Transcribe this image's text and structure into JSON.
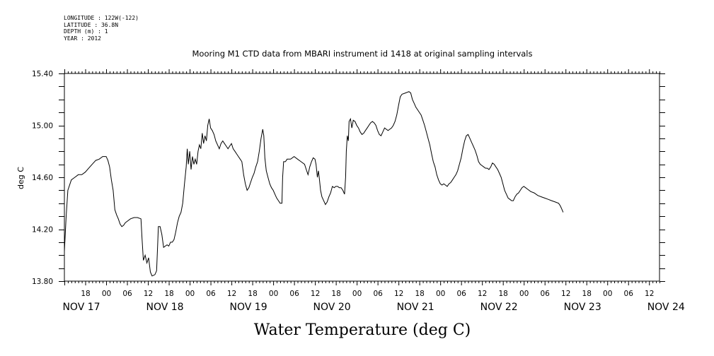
{
  "header": {
    "lines": [
      "LONGITUDE : 122W(-122)",
      "LATITUDE : 36.8N",
      "DEPTH (m) : 1",
      "YEAR : 2012"
    ]
  },
  "chart_data": {
    "type": "line",
    "title": "Mooring M1 CTD data from MBARI instrument id 1418 at original sampling intervals",
    "xlabel": "Water Temperature (deg C)",
    "ylabel": "deg C",
    "xlim_hours": [
      0,
      171
    ],
    "ylim": [
      13.8,
      15.4
    ],
    "yticks": [
      "13.80",
      "14.20",
      "14.60",
      "15.00",
      "15.40"
    ],
    "ytick_values": [
      13.8,
      14.2,
      14.6,
      15.0,
      15.4
    ],
    "hour_ticks": [
      {
        "h": 6,
        "label": "18"
      },
      {
        "h": 12,
        "label": "00"
      },
      {
        "h": 18,
        "label": "06"
      },
      {
        "h": 24,
        "label": "12"
      },
      {
        "h": 30,
        "label": "18"
      },
      {
        "h": 36,
        "label": "00"
      },
      {
        "h": 42,
        "label": "06"
      },
      {
        "h": 48,
        "label": "12"
      },
      {
        "h": 54,
        "label": "18"
      },
      {
        "h": 60,
        "label": "00"
      },
      {
        "h": 66,
        "label": "06"
      },
      {
        "h": 72,
        "label": "12"
      },
      {
        "h": 78,
        "label": "18"
      },
      {
        "h": 84,
        "label": "00"
      },
      {
        "h": 90,
        "label": "06"
      },
      {
        "h": 96,
        "label": "12"
      },
      {
        "h": 102,
        "label": "18"
      },
      {
        "h": 108,
        "label": "00"
      },
      {
        "h": 114,
        "label": "06"
      },
      {
        "h": 120,
        "label": "12"
      },
      {
        "h": 126,
        "label": "18"
      },
      {
        "h": 132,
        "label": "00"
      },
      {
        "h": 138,
        "label": "06"
      },
      {
        "h": 144,
        "label": "12"
      },
      {
        "h": 150,
        "label": "18"
      },
      {
        "h": 156,
        "label": "00"
      },
      {
        "h": 162,
        "label": "06"
      },
      {
        "h": 168,
        "label": "12"
      }
    ],
    "day_labels": [
      {
        "h": 0,
        "label": "NOV 17"
      },
      {
        "h": 24,
        "label": "NOV 18"
      },
      {
        "h": 48,
        "label": "NOV 19"
      },
      {
        "h": 72,
        "label": "NOV 20"
      },
      {
        "h": 96,
        "label": "NOV 21"
      },
      {
        "h": 120,
        "label": "NOV 22"
      },
      {
        "h": 144,
        "label": "NOV 23"
      },
      {
        "h": 168,
        "label": "NOV 24"
      }
    ],
    "series": [
      {
        "values": [
          [
            0.0,
            14.03
          ],
          [
            0.5,
            14.3
          ],
          [
            1.0,
            14.5
          ],
          [
            2.0,
            14.58
          ],
          [
            3.0,
            14.6
          ],
          [
            4.0,
            14.62
          ],
          [
            5.0,
            14.62
          ],
          [
            6.0,
            14.64
          ],
          [
            7.0,
            14.67
          ],
          [
            8.0,
            14.7
          ],
          [
            9.0,
            14.73
          ],
          [
            10.0,
            14.74
          ],
          [
            11.0,
            14.76
          ],
          [
            12.0,
            14.76
          ],
          [
            12.5,
            14.73
          ],
          [
            13.0,
            14.68
          ],
          [
            13.5,
            14.58
          ],
          [
            14.0,
            14.5
          ],
          [
            14.5,
            14.35
          ],
          [
            15.0,
            14.31
          ],
          [
            15.5,
            14.28
          ],
          [
            16.0,
            14.24
          ],
          [
            16.5,
            14.22
          ],
          [
            17.0,
            14.23
          ],
          [
            17.5,
            14.25
          ],
          [
            18.0,
            14.26
          ],
          [
            19.0,
            14.28
          ],
          [
            20.0,
            14.29
          ],
          [
            21.0,
            14.29
          ],
          [
            22.0,
            14.28
          ],
          [
            22.3,
            14.13
          ],
          [
            22.7,
            13.96
          ],
          [
            23.2,
            14.0
          ],
          [
            23.7,
            13.94
          ],
          [
            24.2,
            13.98
          ],
          [
            24.7,
            13.87
          ],
          [
            25.2,
            13.84
          ],
          [
            26.0,
            13.85
          ],
          [
            26.5,
            13.88
          ],
          [
            26.8,
            14.08
          ],
          [
            27.0,
            14.22
          ],
          [
            27.5,
            14.22
          ],
          [
            28.0,
            14.16
          ],
          [
            28.5,
            14.06
          ],
          [
            29.0,
            14.07
          ],
          [
            29.5,
            14.08
          ],
          [
            30.0,
            14.07
          ],
          [
            30.5,
            14.1
          ],
          [
            31.0,
            14.1
          ],
          [
            31.5,
            14.12
          ],
          [
            32.0,
            14.18
          ],
          [
            32.5,
            14.25
          ],
          [
            33.0,
            14.3
          ],
          [
            33.5,
            14.33
          ],
          [
            34.0,
            14.4
          ],
          [
            34.5,
            14.55
          ],
          [
            35.0,
            14.68
          ],
          [
            35.3,
            14.82
          ],
          [
            35.6,
            14.7
          ],
          [
            36.0,
            14.8
          ],
          [
            36.4,
            14.66
          ],
          [
            36.8,
            14.76
          ],
          [
            37.2,
            14.7
          ],
          [
            37.6,
            14.74
          ],
          [
            38.0,
            14.7
          ],
          [
            38.4,
            14.8
          ],
          [
            38.8,
            14.85
          ],
          [
            39.2,
            14.82
          ],
          [
            39.6,
            14.94
          ],
          [
            40.0,
            14.86
          ],
          [
            40.4,
            14.92
          ],
          [
            40.8,
            14.88
          ],
          [
            41.2,
            15.0
          ],
          [
            41.6,
            15.05
          ],
          [
            42.0,
            14.98
          ],
          [
            42.5,
            14.96
          ],
          [
            43.0,
            14.93
          ],
          [
            43.5,
            14.88
          ],
          [
            44.0,
            14.85
          ],
          [
            44.5,
            14.82
          ],
          [
            45.0,
            14.86
          ],
          [
            45.5,
            14.88
          ],
          [
            46.0,
            14.86
          ],
          [
            46.5,
            14.84
          ],
          [
            47.0,
            14.82
          ],
          [
            47.5,
            14.84
          ],
          [
            48.0,
            14.86
          ],
          [
            48.5,
            14.82
          ],
          [
            49.0,
            14.8
          ],
          [
            49.5,
            14.78
          ],
          [
            50.0,
            14.76
          ],
          [
            50.5,
            14.74
          ],
          [
            51.0,
            14.72
          ],
          [
            51.5,
            14.62
          ],
          [
            52.0,
            14.55
          ],
          [
            52.5,
            14.5
          ],
          [
            53.0,
            14.52
          ],
          [
            53.5,
            14.56
          ],
          [
            54.0,
            14.6
          ],
          [
            54.5,
            14.63
          ],
          [
            55.0,
            14.68
          ],
          [
            55.5,
            14.72
          ],
          [
            56.0,
            14.8
          ],
          [
            56.5,
            14.9
          ],
          [
            57.0,
            14.97
          ],
          [
            57.3,
            14.92
          ],
          [
            57.6,
            14.75
          ],
          [
            58.0,
            14.65
          ],
          [
            58.5,
            14.6
          ],
          [
            59.0,
            14.55
          ],
          [
            59.5,
            14.52
          ],
          [
            60.0,
            14.5
          ],
          [
            60.5,
            14.47
          ],
          [
            61.0,
            14.44
          ],
          [
            61.5,
            14.42
          ],
          [
            62.0,
            14.4
          ],
          [
            62.5,
            14.4
          ],
          [
            62.7,
            14.6
          ],
          [
            63.0,
            14.72
          ],
          [
            63.5,
            14.72
          ],
          [
            64.0,
            14.74
          ],
          [
            65.0,
            14.74
          ],
          [
            66.0,
            14.76
          ],
          [
            67.0,
            14.74
          ],
          [
            68.0,
            14.72
          ],
          [
            69.0,
            14.7
          ],
          [
            69.5,
            14.66
          ],
          [
            70.0,
            14.62
          ],
          [
            70.5,
            14.68
          ],
          [
            71.0,
            14.72
          ],
          [
            71.5,
            14.75
          ],
          [
            72.0,
            14.74
          ],
          [
            72.3,
            14.7
          ],
          [
            72.7,
            14.6
          ],
          [
            73.0,
            14.65
          ],
          [
            73.3,
            14.58
          ],
          [
            73.6,
            14.5
          ],
          [
            74.0,
            14.45
          ],
          [
            74.5,
            14.42
          ],
          [
            75.0,
            14.39
          ],
          [
            75.5,
            14.41
          ],
          [
            76.0,
            14.45
          ],
          [
            76.5,
            14.48
          ],
          [
            77.0,
            14.53
          ],
          [
            77.5,
            14.52
          ],
          [
            78.0,
            14.53
          ],
          [
            78.5,
            14.53
          ],
          [
            79.0,
            14.52
          ],
          [
            79.5,
            14.52
          ],
          [
            80.0,
            14.5
          ],
          [
            80.5,
            14.47
          ],
          [
            80.8,
            14.6
          ],
          [
            81.0,
            14.8
          ],
          [
            81.3,
            14.92
          ],
          [
            81.6,
            14.88
          ],
          [
            81.8,
            15.03
          ],
          [
            82.2,
            15.05
          ],
          [
            82.6,
            14.98
          ],
          [
            83.0,
            15.04
          ],
          [
            83.5,
            15.03
          ],
          [
            84.0,
            15.0
          ],
          [
            84.5,
            14.98
          ],
          [
            85.0,
            14.95
          ],
          [
            85.5,
            14.93
          ],
          [
            86.0,
            14.94
          ],
          [
            86.5,
            14.96
          ],
          [
            87.0,
            14.98
          ],
          [
            87.5,
            15.0
          ],
          [
            88.0,
            15.02
          ],
          [
            88.5,
            15.03
          ],
          [
            89.0,
            15.02
          ],
          [
            89.5,
            15.0
          ],
          [
            90.0,
            14.96
          ],
          [
            90.5,
            14.93
          ],
          [
            91.0,
            14.92
          ],
          [
            91.5,
            14.95
          ],
          [
            92.0,
            14.98
          ],
          [
            92.5,
            14.97
          ],
          [
            93.0,
            14.96
          ],
          [
            93.5,
            14.97
          ],
          [
            94.0,
            14.98
          ],
          [
            94.5,
            15.0
          ],
          [
            95.0,
            15.03
          ],
          [
            95.5,
            15.08
          ],
          [
            96.0,
            15.15
          ],
          [
            96.5,
            15.22
          ],
          [
            97.0,
            15.24
          ],
          [
            98.0,
            15.25
          ],
          [
            99.0,
            15.26
          ],
          [
            99.5,
            15.25
          ],
          [
            100.0,
            15.2
          ],
          [
            100.5,
            15.17
          ],
          [
            101.0,
            15.14
          ],
          [
            101.5,
            15.12
          ],
          [
            102.0,
            15.1
          ],
          [
            102.5,
            15.08
          ],
          [
            103.0,
            15.04
          ],
          [
            103.5,
            15.0
          ],
          [
            104.0,
            14.95
          ],
          [
            104.5,
            14.9
          ],
          [
            105.0,
            14.85
          ],
          [
            105.5,
            14.78
          ],
          [
            106.0,
            14.72
          ],
          [
            106.5,
            14.68
          ],
          [
            107.0,
            14.62
          ],
          [
            107.5,
            14.58
          ],
          [
            108.0,
            14.55
          ],
          [
            108.5,
            14.54
          ],
          [
            109.0,
            14.55
          ],
          [
            109.5,
            14.54
          ],
          [
            110.0,
            14.53
          ],
          [
            110.5,
            14.55
          ],
          [
            111.0,
            14.56
          ],
          [
            111.5,
            14.58
          ],
          [
            112.0,
            14.6
          ],
          [
            112.5,
            14.62
          ],
          [
            113.0,
            14.65
          ],
          [
            113.5,
            14.7
          ],
          [
            114.0,
            14.75
          ],
          [
            114.5,
            14.82
          ],
          [
            115.0,
            14.88
          ],
          [
            115.5,
            14.92
          ],
          [
            116.0,
            14.93
          ],
          [
            116.5,
            14.9
          ],
          [
            117.0,
            14.87
          ],
          [
            117.5,
            14.84
          ],
          [
            118.0,
            14.81
          ],
          [
            118.5,
            14.77
          ],
          [
            119.0,
            14.72
          ],
          [
            119.5,
            14.7
          ],
          [
            120.0,
            14.69
          ],
          [
            120.5,
            14.68
          ],
          [
            121.0,
            14.67
          ],
          [
            121.5,
            14.67
          ],
          [
            122.0,
            14.66
          ],
          [
            122.5,
            14.68
          ],
          [
            123.0,
            14.71
          ],
          [
            123.5,
            14.7
          ],
          [
            124.0,
            14.68
          ],
          [
            124.5,
            14.66
          ],
          [
            125.0,
            14.63
          ],
          [
            125.5,
            14.6
          ],
          [
            126.0,
            14.55
          ],
          [
            126.5,
            14.5
          ],
          [
            127.0,
            14.47
          ],
          [
            127.5,
            14.44
          ],
          [
            128.0,
            14.43
          ],
          [
            128.5,
            14.42
          ],
          [
            129.0,
            14.42
          ],
          [
            129.5,
            14.45
          ],
          [
            130.0,
            14.47
          ],
          [
            130.5,
            14.48
          ],
          [
            131.0,
            14.5
          ],
          [
            131.5,
            14.52
          ],
          [
            132.0,
            14.53
          ],
          [
            132.5,
            14.52
          ],
          [
            133.0,
            14.51
          ],
          [
            134.0,
            14.49
          ],
          [
            135.0,
            14.48
          ],
          [
            136.0,
            14.46
          ],
          [
            137.0,
            14.45
          ],
          [
            138.0,
            14.44
          ],
          [
            139.0,
            14.43
          ],
          [
            140.0,
            14.42
          ],
          [
            141.0,
            14.41
          ],
          [
            142.0,
            14.4
          ],
          [
            142.5,
            14.38
          ],
          [
            143.0,
            14.35
          ],
          [
            143.3,
            14.33
          ]
        ]
      }
    ]
  }
}
